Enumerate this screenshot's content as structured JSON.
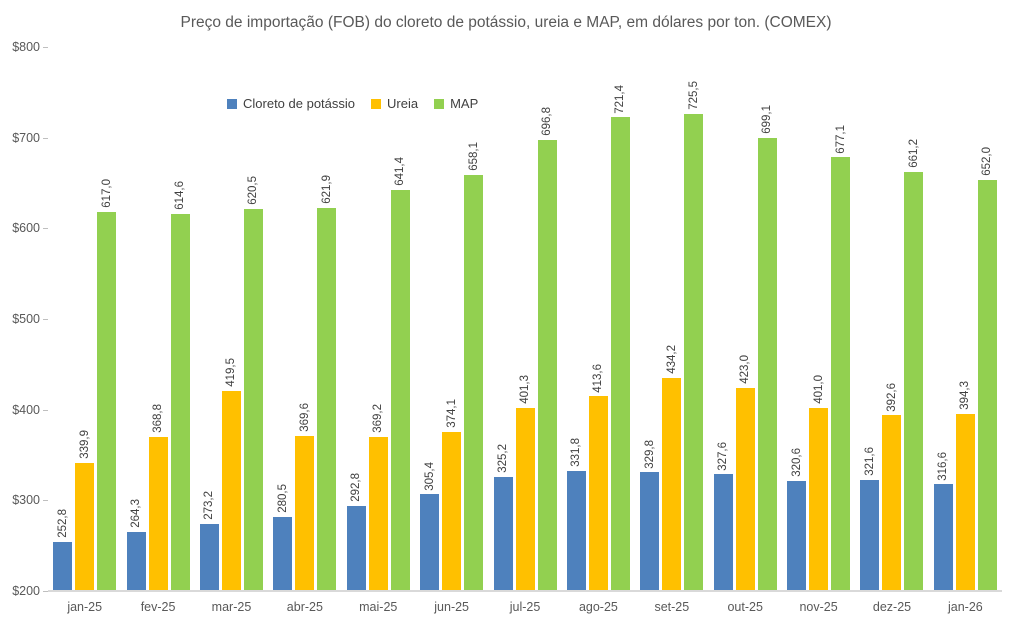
{
  "chart_data": {
    "type": "bar",
    "title": "Preço de importação (FOB) do cloreto de potássio, ureia e MAP, em dólares por ton. (COMEX)",
    "categories": [
      "jan-25",
      "fev-25",
      "mar-25",
      "abr-25",
      "mai-25",
      "jun-25",
      "jul-25",
      "ago-25",
      "set-25",
      "out-25",
      "nov-25",
      "dez-25",
      "jan-26"
    ],
    "series": [
      {
        "name": "Cloreto de potássio",
        "color": "#4E81BD",
        "values": [
          252.8,
          264.3,
          273.2,
          280.5,
          292.8,
          305.4,
          325.2,
          331.8,
          329.8,
          327.6,
          320.6,
          321.6,
          316.6
        ]
      },
      {
        "name": "Ureia",
        "color": "#FFC000",
        "values": [
          339.9,
          368.8,
          419.5,
          369.6,
          369.2,
          374.1,
          401.3,
          413.6,
          434.2,
          423.0,
          401.0,
          392.6,
          394.3
        ]
      },
      {
        "name": "MAP",
        "color": "#92D050",
        "values": [
          617.0,
          614.6,
          620.5,
          621.9,
          641.4,
          658.1,
          696.8,
          721.4,
          725.5,
          699.1,
          677.1,
          661.2,
          652.0
        ]
      }
    ],
    "ylim": [
      200,
      800
    ],
    "ytick_step": 100,
    "ytick_labels": [
      "$200",
      "$300",
      "$400",
      "$500",
      "$600",
      "$700",
      "$800"
    ],
    "decimal_separator": ",",
    "data_labels": "rotated-vertical",
    "legend_position": "top-inside-left",
    "grid": false,
    "xlabel": "",
    "ylabel": ""
  },
  "style": {
    "background": "#FFFFFF",
    "title_color": "#595959",
    "axis_text_color": "#595959",
    "data_label_color": "#404040",
    "axis_line_color": "#D9D9D9",
    "tick_color": "#BFBFBF"
  }
}
